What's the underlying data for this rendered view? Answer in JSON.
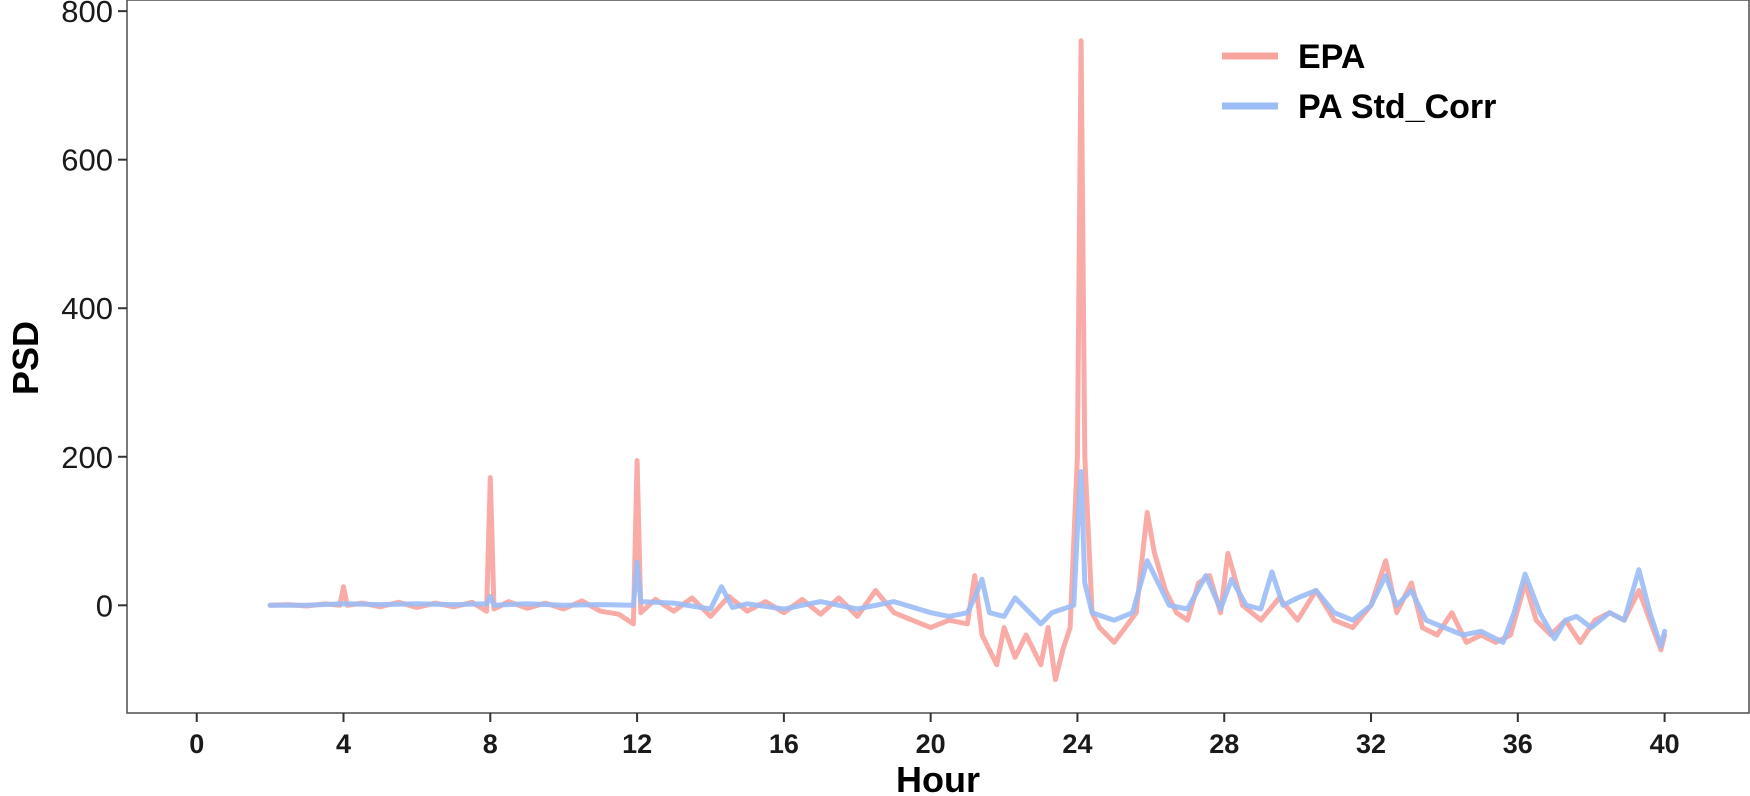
{
  "chart_data": {
    "type": "line",
    "xlabel": "Hour",
    "ylabel": "PSD",
    "xlim": [
      -1.9,
      42.3
    ],
    "ylim": [
      -145,
      815
    ],
    "xticks": [
      0,
      4,
      8,
      12,
      16,
      20,
      24,
      28,
      32,
      36,
      40
    ],
    "yticks": [
      0,
      200,
      400,
      600,
      800
    ],
    "grid": false,
    "legend_position": "top-right",
    "series": [
      {
        "name": "EPA",
        "color": "#f8a39d",
        "points": [
          [
            2.0,
            0
          ],
          [
            2.5,
            1
          ],
          [
            3.0,
            -1
          ],
          [
            3.5,
            2
          ],
          [
            3.9,
            0
          ],
          [
            4.0,
            25
          ],
          [
            4.1,
            0
          ],
          [
            4.5,
            3
          ],
          [
            5.0,
            -2
          ],
          [
            5.5,
            4
          ],
          [
            6.0,
            -3
          ],
          [
            6.5,
            3
          ],
          [
            7.0,
            -2
          ],
          [
            7.5,
            4
          ],
          [
            7.9,
            -8
          ],
          [
            8.0,
            172
          ],
          [
            8.1,
            -5
          ],
          [
            8.5,
            5
          ],
          [
            9.0,
            -4
          ],
          [
            9.5,
            3
          ],
          [
            10.0,
            -5
          ],
          [
            10.5,
            6
          ],
          [
            11.0,
            -8
          ],
          [
            11.5,
            -12
          ],
          [
            11.9,
            -25
          ],
          [
            12.0,
            195
          ],
          [
            12.1,
            -10
          ],
          [
            12.5,
            8
          ],
          [
            13.0,
            -8
          ],
          [
            13.5,
            10
          ],
          [
            14.0,
            -15
          ],
          [
            14.5,
            12
          ],
          [
            15.0,
            -8
          ],
          [
            15.5,
            5
          ],
          [
            16.0,
            -10
          ],
          [
            16.5,
            8
          ],
          [
            17.0,
            -12
          ],
          [
            17.5,
            10
          ],
          [
            18.0,
            -15
          ],
          [
            18.5,
            20
          ],
          [
            19.0,
            -10
          ],
          [
            19.5,
            -20
          ],
          [
            20.0,
            -30
          ],
          [
            20.5,
            -20
          ],
          [
            21.0,
            -25
          ],
          [
            21.2,
            40
          ],
          [
            21.4,
            -40
          ],
          [
            21.6,
            -60
          ],
          [
            21.8,
            -80
          ],
          [
            22.0,
            -30
          ],
          [
            22.3,
            -70
          ],
          [
            22.6,
            -40
          ],
          [
            23.0,
            -80
          ],
          [
            23.2,
            -30
          ],
          [
            23.4,
            -100
          ],
          [
            23.6,
            -60
          ],
          [
            23.8,
            -30
          ],
          [
            24.0,
            200
          ],
          [
            24.1,
            760
          ],
          [
            24.2,
            200
          ],
          [
            24.4,
            -10
          ],
          [
            24.6,
            -30
          ],
          [
            24.8,
            -40
          ],
          [
            25.0,
            -50
          ],
          [
            25.3,
            -30
          ],
          [
            25.6,
            -10
          ],
          [
            25.9,
            125
          ],
          [
            26.1,
            70
          ],
          [
            26.4,
            20
          ],
          [
            26.7,
            -10
          ],
          [
            27.0,
            -20
          ],
          [
            27.3,
            30
          ],
          [
            27.6,
            40
          ],
          [
            27.9,
            -10
          ],
          [
            28.1,
            70
          ],
          [
            28.5,
            0
          ],
          [
            29.0,
            -20
          ],
          [
            29.5,
            10
          ],
          [
            30.0,
            -20
          ],
          [
            30.5,
            20
          ],
          [
            31.0,
            -20
          ],
          [
            31.5,
            -30
          ],
          [
            32.0,
            0
          ],
          [
            32.4,
            60
          ],
          [
            32.7,
            -10
          ],
          [
            33.1,
            30
          ],
          [
            33.4,
            -30
          ],
          [
            33.8,
            -40
          ],
          [
            34.2,
            -10
          ],
          [
            34.6,
            -50
          ],
          [
            35.0,
            -40
          ],
          [
            35.4,
            -50
          ],
          [
            35.8,
            -40
          ],
          [
            36.2,
            30
          ],
          [
            36.5,
            -20
          ],
          [
            36.9,
            -40
          ],
          [
            37.3,
            -20
          ],
          [
            37.7,
            -50
          ],
          [
            38.1,
            -20
          ],
          [
            38.5,
            -10
          ],
          [
            38.9,
            -20
          ],
          [
            39.3,
            20
          ],
          [
            39.6,
            -20
          ],
          [
            39.9,
            -60
          ],
          [
            40.0,
            -40
          ]
        ]
      },
      {
        "name": "PA Std_Corr",
        "color": "#9bbcf5",
        "points": [
          [
            2.0,
            0
          ],
          [
            3.0,
            0
          ],
          [
            4.0,
            2
          ],
          [
            5.0,
            1
          ],
          [
            6.0,
            2
          ],
          [
            7.0,
            1
          ],
          [
            7.9,
            2
          ],
          [
            8.0,
            12
          ],
          [
            8.1,
            0
          ],
          [
            9.0,
            2
          ],
          [
            10.0,
            0
          ],
          [
            11.0,
            1
          ],
          [
            11.9,
            0
          ],
          [
            12.0,
            58
          ],
          [
            12.1,
            5
          ],
          [
            13.0,
            3
          ],
          [
            14.0,
            -5
          ],
          [
            14.3,
            25
          ],
          [
            14.6,
            -3
          ],
          [
            15.0,
            2
          ],
          [
            16.0,
            -5
          ],
          [
            17.0,
            5
          ],
          [
            18.0,
            -5
          ],
          [
            19.0,
            5
          ],
          [
            20.0,
            -10
          ],
          [
            20.5,
            -15
          ],
          [
            21.0,
            -10
          ],
          [
            21.2,
            10
          ],
          [
            21.4,
            35
          ],
          [
            21.6,
            -10
          ],
          [
            22.0,
            -15
          ],
          [
            22.3,
            10
          ],
          [
            22.6,
            -5
          ],
          [
            23.0,
            -25
          ],
          [
            23.3,
            -10
          ],
          [
            23.6,
            -5
          ],
          [
            23.9,
            0
          ],
          [
            24.0,
            100
          ],
          [
            24.1,
            180
          ],
          [
            24.2,
            30
          ],
          [
            24.4,
            -10
          ],
          [
            25.0,
            -20
          ],
          [
            25.5,
            -10
          ],
          [
            25.9,
            60
          ],
          [
            26.2,
            30
          ],
          [
            26.5,
            0
          ],
          [
            27.0,
            -5
          ],
          [
            27.5,
            40
          ],
          [
            27.9,
            -5
          ],
          [
            28.2,
            35
          ],
          [
            28.6,
            0
          ],
          [
            29.0,
            -5
          ],
          [
            29.3,
            45
          ],
          [
            29.6,
            0
          ],
          [
            30.0,
            10
          ],
          [
            30.5,
            20
          ],
          [
            31.0,
            -10
          ],
          [
            31.5,
            -20
          ],
          [
            32.0,
            0
          ],
          [
            32.4,
            40
          ],
          [
            32.7,
            0
          ],
          [
            33.1,
            20
          ],
          [
            33.5,
            -20
          ],
          [
            34.0,
            -30
          ],
          [
            34.5,
            -40
          ],
          [
            35.0,
            -35
          ],
          [
            35.6,
            -50
          ],
          [
            35.9,
            -10
          ],
          [
            36.2,
            42
          ],
          [
            36.6,
            -10
          ],
          [
            37.0,
            -45
          ],
          [
            37.3,
            -20
          ],
          [
            37.6,
            -15
          ],
          [
            38.0,
            -30
          ],
          [
            38.5,
            -10
          ],
          [
            38.9,
            -20
          ],
          [
            39.3,
            48
          ],
          [
            39.6,
            -10
          ],
          [
            39.9,
            -55
          ],
          [
            40.0,
            -35
          ]
        ]
      }
    ]
  }
}
